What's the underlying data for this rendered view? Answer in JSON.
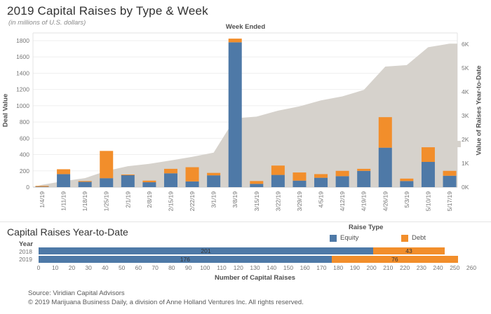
{
  "header": {
    "title": "2019 Capital Raises by Type & Week",
    "subtitle": "(in millions of U.S. dollars)"
  },
  "colors": {
    "equity_blue": "#4e79a7",
    "debt_orange": "#f28e2b",
    "ytd_area_gray": "#d6d2cc",
    "gridline": "#efefef",
    "axis_line": "#c9c9c9",
    "plot_border": "#e3e3e3"
  },
  "chart_data": [
    {
      "type": "bar",
      "title": "2019 Capital Raises by Type & Week",
      "subtitle": "(in millions of U.S. dollars)",
      "x_header": "Week Ended",
      "categories": [
        "1/4/19",
        "1/11/19",
        "1/18/19",
        "1/25/19",
        "2/1/19",
        "2/8/19",
        "2/15/19",
        "2/22/19",
        "3/1/19",
        "3/8/19",
        "3/15/19",
        "3/22/19",
        "3/29/19",
        "4/5/19",
        "4/12/19",
        "4/19/19",
        "4/26/19",
        "5/3/19",
        "5/10/19",
        "5/17/19"
      ],
      "series": [
        {
          "name": "Equity",
          "color": "#4e79a7",
          "values": [
            5,
            160,
            65,
            110,
            150,
            60,
            170,
            70,
            145,
            1780,
            40,
            150,
            80,
            115,
            135,
            200,
            485,
            75,
            310,
            140
          ]
        },
        {
          "name": "Debt",
          "color": "#f28e2b",
          "values": [
            10,
            60,
            10,
            335,
            5,
            20,
            55,
            175,
            30,
            45,
            35,
            115,
            100,
            45,
            65,
            25,
            375,
            30,
            180,
            60
          ]
        }
      ],
      "area_series": {
        "name": "Value of Raises Year-to-Date",
        "axis": "right",
        "color": "#d6d2cc",
        "values": [
          100,
          250,
          380,
          680,
          880,
          980,
          1120,
          1270,
          1450,
          2890,
          2960,
          3210,
          3390,
          3640,
          3810,
          4080,
          5060,
          5120,
          5870,
          6020
        ]
      },
      "left_axis": {
        "label": "Deal Value",
        "min": 0,
        "max": 1800,
        "step": 200,
        "ticks": [
          "0",
          "200",
          "400",
          "600",
          "800",
          "1000",
          "1200",
          "1400",
          "1600",
          "1800"
        ]
      },
      "right_axis": {
        "label": "Value of Raises Year-to-Date",
        "min": 0,
        "max": 6000,
        "step": 1000,
        "ticks": [
          "0K",
          "1K",
          "2K",
          "3K",
          "4K",
          "5K",
          "6K"
        ]
      },
      "legend_position": "right-axis-swatch",
      "grid": true
    },
    {
      "type": "bar-horizontal-stacked",
      "title": "Capital Raises Year-to-Date",
      "row_header": "Year",
      "categories": [
        "2018",
        "2019"
      ],
      "series": [
        {
          "name": "Equity",
          "color": "#4e79a7",
          "values": [
            201,
            176
          ]
        },
        {
          "name": "Debt",
          "color": "#f28e2b",
          "values": [
            43,
            76
          ]
        }
      ],
      "xlabel": "Number of Capital Raises",
      "xlim": [
        0,
        260
      ],
      "x_ticks": [
        "0",
        "10",
        "20",
        "30",
        "40",
        "50",
        "60",
        "70",
        "80",
        "90",
        "100",
        "110",
        "120",
        "130",
        "140",
        "150",
        "160",
        "170",
        "180",
        "190",
        "200",
        "210",
        "220",
        "230",
        "240",
        "250",
        "260"
      ],
      "legend": {
        "title": "Raise Type",
        "entries": [
          "Equity",
          "Debt"
        ]
      }
    }
  ],
  "footer": {
    "line1": "Source: Viridian Capital Advisors",
    "line2": "© 2019 Marijuana Business Daily, a division of Anne Holland Ventures Inc. All rights reserved."
  }
}
